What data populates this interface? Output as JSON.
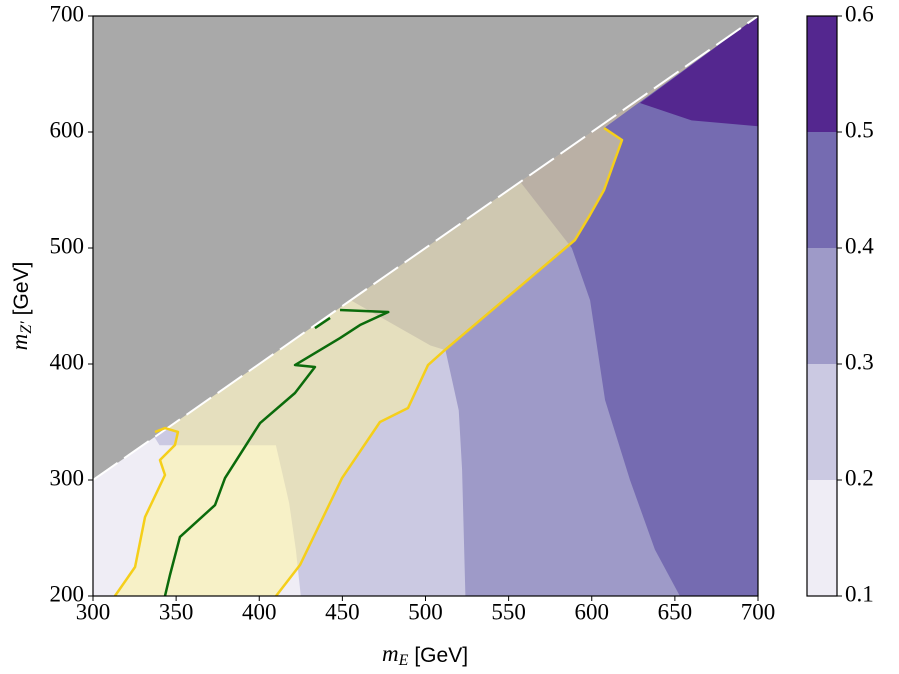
{
  "chart_data": {
    "type": "contour",
    "xlabel": {
      "symbol": "m",
      "sub": "E",
      "unit": "[GeV]"
    },
    "ylabel": {
      "symbol": "m",
      "sub": "Z′",
      "unit": "[GeV]"
    },
    "xlim": [
      300,
      700
    ],
    "ylim": [
      200,
      700
    ],
    "xticks": [
      300,
      350,
      400,
      450,
      500,
      550,
      600,
      650,
      700
    ],
    "yticks": [
      200,
      300,
      400,
      500,
      600,
      700
    ],
    "colorbar": {
      "levels": [
        0.1,
        0.2,
        0.3,
        0.4,
        0.5,
        0.6
      ],
      "colors": [
        "#efedf5",
        "#cbc9e2",
        "#9e9ac8",
        "#756bb1",
        "#54278f"
      ]
    },
    "regions": [
      {
        "color": "#efedf5",
        "x": [
          300,
          700,
          700,
          300
        ],
        "y": [
          200,
          200,
          700,
          700
        ]
      },
      {
        "color": "#cbc9e2",
        "x": [
          425,
          700,
          700,
          337,
          340,
          355,
          410,
          418,
          422
        ],
        "y": [
          200,
          200,
          700,
          337,
          330,
          330,
          330,
          280,
          240
        ]
      },
      {
        "color": "#9e9ac8",
        "x": [
          524,
          700,
          700,
          455,
          503,
          512,
          520,
          522
        ],
        "y": [
          200,
          200,
          700,
          455,
          416,
          412,
          360,
          309
        ]
      },
      {
        "color": "#756bb1",
        "x": [
          653,
          700,
          700,
          557,
          588,
          599,
          608,
          623,
          638
        ],
        "y": [
          200,
          200,
          700,
          557,
          500,
          455,
          369,
          300,
          240
        ]
      },
      {
        "color": "#54278f",
        "x": [
          629,
          660,
          700,
          700
        ],
        "y": [
          625,
          610,
          605,
          700
        ]
      }
    ],
    "excluded": {
      "color": "#a9a9a9",
      "x": [
        300,
        700,
        300
      ],
      "y": [
        300,
        700,
        700
      ]
    },
    "lines": [
      {
        "color": "#f5cf1a",
        "fill": "#fff59a",
        "x": [
          313.2,
          325.3,
          331.3,
          343.3,
          340.3,
          349.3,
          351.1,
          343.3,
          337.3
        ],
        "y": [
          200,
          225,
          268.1,
          304.3,
          317.2,
          330.2,
          341.4,
          344.8,
          341.4
        ],
        "x2": [
          410.1,
          424.5,
          449.8,
          472.6,
          489.5,
          501.5,
          511.7,
          589.9,
          598.9,
          607.4,
          618.2,
          607.4
        ],
        "y2": [
          200,
          226.7,
          301.7,
          350,
          362.1,
          399.1,
          412.1,
          506.9,
          528.4,
          550,
          593.1,
          603.4
        ]
      },
      {
        "color": "#0b6b0b",
        "x": [
          343.3,
          346.3,
          352.3,
          373.4,
          379.4,
          400.5,
          421.5,
          433.5,
          421.5,
          448.6,
          460.6,
          477.6,
          448.6
        ],
        "y": [
          200,
          218.1,
          250.9,
          278.4,
          301.7,
          349.1,
          375,
          397.4,
          399.1,
          422.4,
          433.6,
          444.8,
          446.6
        ]
      },
      {
        "color": "#0b6b0b",
        "x": [
          442.6,
          433.5
        ],
        "y": [
          439.7,
          431
        ]
      }
    ]
  }
}
